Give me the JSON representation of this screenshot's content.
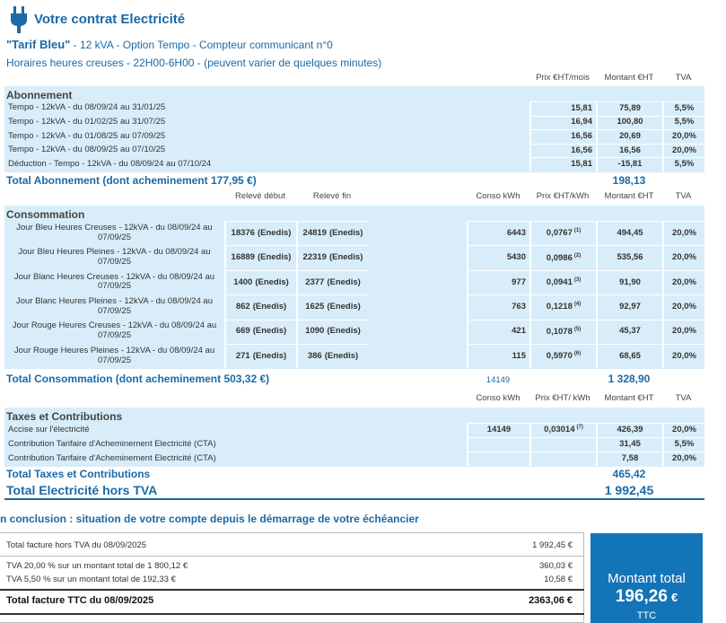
{
  "header": {
    "title": "Votre contrat Electricité",
    "tariff": "\"Tarif Bleu\"",
    "details": "- 12 kVA - Option Tempo - Compteur communicant n°0",
    "hours": "Horaires heures creuses - 22H00-6H00 - (peuvent varier de quelques minutes)"
  },
  "abonnement": {
    "columns": [
      "Prix €HT/mois",
      "Montant €HT",
      "TVA"
    ],
    "title": "Abonnement",
    "rows": [
      {
        "label": "Tempo - 12kVA - du 08/09/24 au 31/01/25",
        "price": "15,81",
        "amount": "75,89",
        "vat": "5,5%"
      },
      {
        "label": "Tempo - 12kVA - du 01/02/25 au 31/07/25",
        "price": "16,94",
        "amount": "100,80",
        "vat": "5,5%"
      },
      {
        "label": "Tempo - 12kVA - du 01/08/25 au 07/09/25",
        "price": "16,56",
        "amount": "20,69",
        "vat": "20,0%"
      },
      {
        "label": "Tempo - 12kVA - du 08/09/25 au 07/10/25",
        "price": "16,56",
        "amount": "16,56",
        "vat": "20,0%"
      },
      {
        "label": "Déduction - Tempo - 12kVA - du 08/09/24 au 07/10/24",
        "price": "15,81",
        "amount": "-15,81",
        "vat": "5,5%"
      }
    ],
    "total": {
      "label": "Total Abonnement (dont acheminement 177,95 €)",
      "amount": "198,13"
    }
  },
  "consommation": {
    "columns": [
      "Relevé début",
      "Relevé fin",
      "Conso kWh",
      "Prix €HT/kWh",
      "Montant €HT",
      "TVA"
    ],
    "title": "Consommation",
    "rows": [
      {
        "label": "Jour Bleu Heures Creuses - 12kVA - du 08/09/24 au 07/09/25",
        "start": "18376",
        "start_source": "(Enedis)",
        "end": "24819",
        "end_source": "(Enedis)",
        "kwh": "6443",
        "price": "0,0767",
        "note": "(1)",
        "amount": "494,45",
        "vat": "20,0%"
      },
      {
        "label": "Jour Bleu Heures Pleines - 12kVA - du 08/09/24 au 07/09/25",
        "start": "16889",
        "start_source": "(Enedis)",
        "end": "22319",
        "end_source": "(Enedis)",
        "kwh": "5430",
        "price": "0,0986",
        "note": "(2)",
        "amount": "535,56",
        "vat": "20,0%"
      },
      {
        "label": "Jour Blanc Heures Creuses - 12kVA - du 08/09/24 au 07/09/25",
        "start": "1400",
        "start_source": "(Enedis)",
        "end": "2377",
        "end_source": "(Enedis)",
        "kwh": "977",
        "price": "0,0941",
        "note": "(3)",
        "amount": "91,90",
        "vat": "20,0%"
      },
      {
        "label": "Jour Blanc Heures Pleines - 12kVA - du 08/09/24 au 07/09/25",
        "start": "862",
        "start_source": "(Enedis)",
        "end": "1625",
        "end_source": "(Enedis)",
        "kwh": "763",
        "price": "0,1218",
        "note": "(4)",
        "amount": "92,97",
        "vat": "20,0%"
      },
      {
        "label": "Jour Rouge Heures Creuses - 12kVA - du 08/09/24 au 07/09/25",
        "start": "669",
        "start_source": "(Enedis)",
        "end": "1090",
        "end_source": "(Enedis)",
        "kwh": "421",
        "price": "0,1078",
        "note": "(5)",
        "amount": "45,37",
        "vat": "20,0%"
      },
      {
        "label": "Jour Rouge Heures Pleines - 12kVA - du 08/09/24 au 07/09/25",
        "start": "271",
        "start_source": "(Enedis)",
        "end": "386",
        "end_source": "(Enedis)",
        "kwh": "115",
        "price": "0,5970",
        "note": "(6)",
        "amount": "68,65",
        "vat": "20,0%"
      }
    ],
    "total": {
      "label": "Total Consommation (dont acheminement 503,32 €)",
      "kwh": "14149",
      "amount": "1 328,90"
    }
  },
  "taxes": {
    "columns": [
      "Conso kWh",
      "Prix €HT/ kWh",
      "Montant €HT",
      "TVA"
    ],
    "title": "Taxes et Contributions",
    "rows": [
      {
        "label": "Accise sur l'électricité",
        "kwh": "14149",
        "price": "0,03014",
        "note": "(7)",
        "amount": "426,39",
        "vat": "20,0%"
      },
      {
        "label": "Contribution Tarifaire d'Acheminement Electricité (CTA)",
        "amount": "31,45",
        "vat": "5,5%"
      },
      {
        "label": "Contribution Tarifaire d'Acheminement Electricité (CTA)",
        "amount": "7,58",
        "vat": "20,0%"
      }
    ],
    "total": {
      "label": "Total Taxes et Contributions",
      "amount": "465,42"
    }
  },
  "grand_total": {
    "label": "Total Electricité hors TVA",
    "amount": "1 992,45"
  },
  "conclusion": {
    "title": "n conclusion : situation de votre compte depuis le démarrage de votre échéancier",
    "rows": [
      {
        "label": "Total facture hors TVA du 08/09/2025",
        "amount": "1 992,45 €"
      },
      {
        "label": "TVA 20,00 % sur un montant total de 1 800,12 €",
        "amount": "360,03 €"
      },
      {
        "label": "TVA 5,50 % sur un montant total de 192,33 €",
        "amount": "10,58 €"
      }
    ],
    "total": {
      "label": "Total facture TTC du 08/09/2025",
      "amount": "2363,06 €"
    },
    "box": {
      "label": "Montant total",
      "amount": "196,26",
      "currency": "€",
      "suffix": "TTC"
    }
  }
}
